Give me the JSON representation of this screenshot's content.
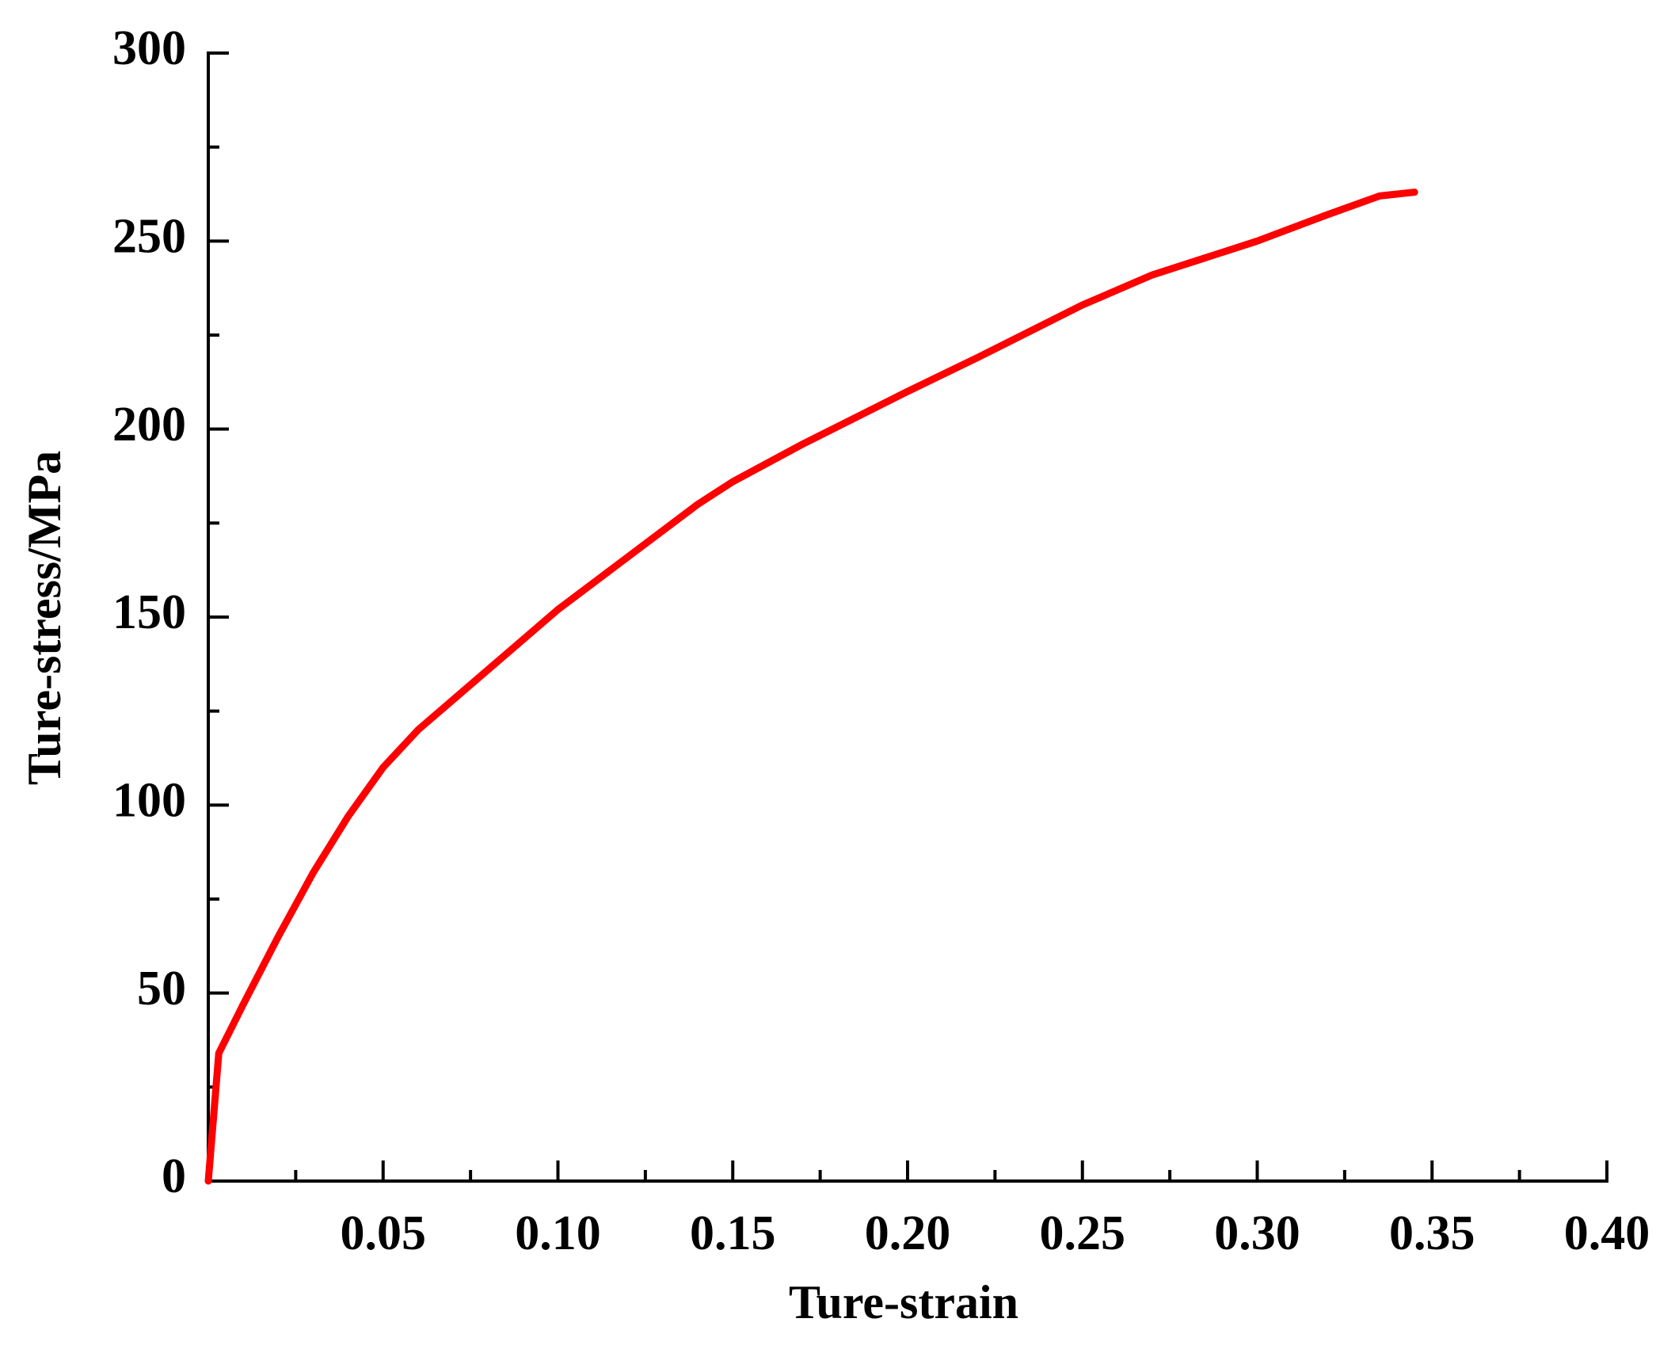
{
  "chart_data": {
    "type": "line",
    "x_label": "Ture-strain",
    "y_label": "Ture-stress/MPa",
    "xlim": [
      0,
      0.4
    ],
    "ylim": [
      0,
      300
    ],
    "xticks": [
      0.05,
      {
        "value": 0.1,
        "label": "0.10"
      },
      0.15,
      {
        "value": 0.2,
        "label": "0.20"
      },
      0.25,
      {
        "value": 0.3,
        "label": "0.30"
      },
      0.35,
      {
        "value": 0.4,
        "label": "0.40"
      }
    ],
    "xminorticks": [
      0.025,
      0.075,
      0.125,
      0.175,
      0.225,
      0.275,
      0.325,
      0.375
    ],
    "yticks": [
      0,
      50,
      100,
      150,
      200,
      250,
      300
    ],
    "yminorticks": [
      25,
      75,
      125,
      175,
      225,
      275
    ],
    "grid": false,
    "series": [
      {
        "color": "#ff0000",
        "x": [
          0,
          0.003,
          0.01,
          0.02,
          0.03,
          0.04,
          0.05,
          0.06,
          0.07,
          0.08,
          0.1,
          0.12,
          0.14,
          0.15,
          0.17,
          0.2,
          0.22,
          0.25,
          0.27,
          0.3,
          0.32,
          0.335,
          0.345
        ],
        "values": [
          0,
          34,
          47,
          65,
          82,
          97,
          110,
          120,
          128,
          136,
          152,
          166,
          180,
          186,
          196,
          210,
          219,
          233,
          241,
          250,
          257,
          262,
          263
        ]
      }
    ]
  }
}
